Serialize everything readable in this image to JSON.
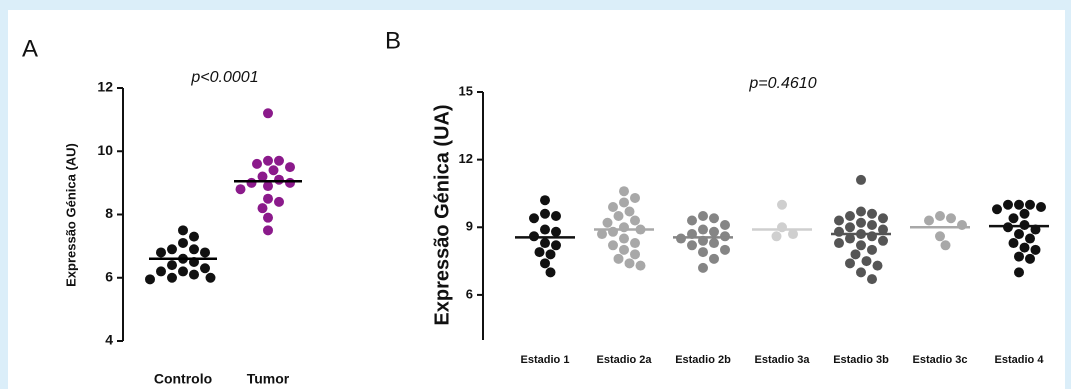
{
  "chart_data": [
    {
      "type": "dot",
      "panel": "A",
      "title": "p<0.0001",
      "y_label": "Expressão Génica (AU)",
      "categories": [
        "Controlo",
        "Tumor"
      ],
      "values": [
        [
          7.5,
          7.3,
          7.1,
          6.9,
          6.9,
          6.8,
          6.8,
          6.6,
          6.5,
          6.4,
          6.3,
          6.2,
          6.2,
          6.1,
          6.0,
          6.0,
          5.95
        ],
        [
          11.2,
          9.7,
          9.7,
          9.6,
          9.5,
          9.4,
          9.2,
          9.1,
          9.0,
          9.0,
          8.9,
          8.8,
          8.5,
          8.4,
          8.2,
          7.9,
          7.5
        ]
      ],
      "means": [
        6.6,
        9.05
      ],
      "colors": [
        "#111111",
        "#8b1a8b"
      ],
      "mean_color": "#000000",
      "ylim": [
        4,
        12
      ],
      "yticks": [
        4,
        6,
        8,
        10,
        12
      ]
    },
    {
      "type": "dot",
      "panel": "B",
      "title": "p=0.4610",
      "y_label": "Expressão Génica (UA)",
      "categories": [
        "Estadio 1",
        "Estadio 2a",
        "Estadio 2b",
        "Estadio 3a",
        "Estadio 3b",
        "Estadio 3c",
        "Estadio 4"
      ],
      "values": [
        [
          10.2,
          9.6,
          9.5,
          9.4,
          8.9,
          8.8,
          8.6,
          8.3,
          8.2,
          7.9,
          7.8,
          7.4,
          7.0
        ],
        [
          10.6,
          10.3,
          10.1,
          9.9,
          9.7,
          9.5,
          9.3,
          9.2,
          9.0,
          8.9,
          8.8,
          8.7,
          8.5,
          8.3,
          8.2,
          8.0,
          7.8,
          7.6,
          7.4,
          7.3
        ],
        [
          9.5,
          9.4,
          9.3,
          9.1,
          8.9,
          8.8,
          8.7,
          8.6,
          8.5,
          8.4,
          8.3,
          8.2,
          8.0,
          7.9,
          7.6,
          7.2
        ],
        [
          10.0,
          9.0,
          8.7,
          8.6
        ],
        [
          11.1,
          9.7,
          9.6,
          9.5,
          9.4,
          9.3,
          9.2,
          9.1,
          9.0,
          8.9,
          8.8,
          8.7,
          8.6,
          8.5,
          8.4,
          8.3,
          8.2,
          8.0,
          7.8,
          7.5,
          7.4,
          7.3,
          7.0,
          6.7
        ],
        [
          9.5,
          9.4,
          9.3,
          9.1,
          8.6,
          8.2
        ],
        [
          10.0,
          10.0,
          10.0,
          9.9,
          9.8,
          9.6,
          9.4,
          9.1,
          9.0,
          8.9,
          8.7,
          8.5,
          8.3,
          8.1,
          8.0,
          7.7,
          7.6,
          7.0
        ]
      ],
      "means": [
        8.55,
        8.9,
        8.55,
        8.9,
        8.7,
        9.0,
        9.05
      ],
      "colors": [
        "#111111",
        "#a8a8a8",
        "#858585",
        "#cfcfcf",
        "#555555",
        "#a8a8a8",
        "#111111"
      ],
      "ylim": [
        4,
        15
      ],
      "yticks": [
        6,
        9,
        12,
        15
      ]
    }
  ]
}
